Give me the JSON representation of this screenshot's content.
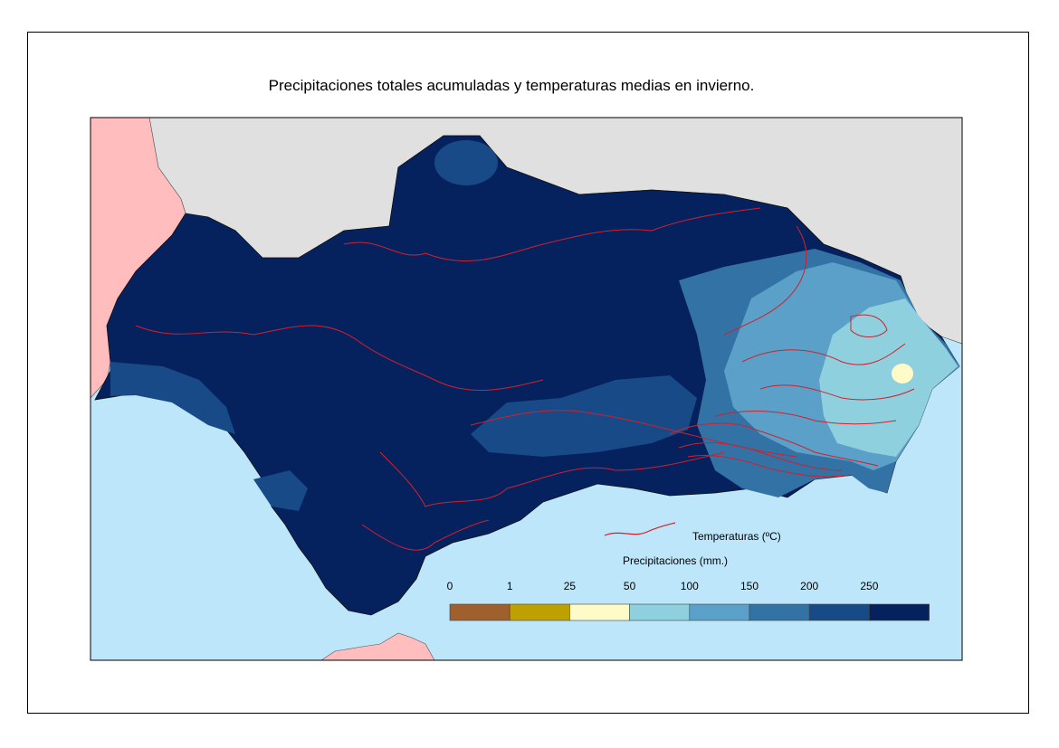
{
  "title": "Precipitaciones totales acumuladas y temperaturas medias en invierno.",
  "legend": {
    "temperature_label": "Temperaturas (ºC)",
    "precipitation_label": "Precipitaciones (mm.)",
    "ticks": [
      "0",
      "1",
      "25",
      "50",
      "100",
      "150",
      "200",
      "250"
    ],
    "colors": [
      "#a0602e",
      "#bea000",
      "#fffbc8",
      "#8fd0de",
      "#5aa0c8",
      "#3372a4",
      "#174a87",
      "#05225f"
    ],
    "isoline_color": "#d3202c"
  },
  "map": {
    "colors": {
      "sea": "#bde6fb",
      "portugal": "#ffbdbd",
      "spain": "#e0e0e0",
      "andalusia": "#05225f"
    }
  }
}
